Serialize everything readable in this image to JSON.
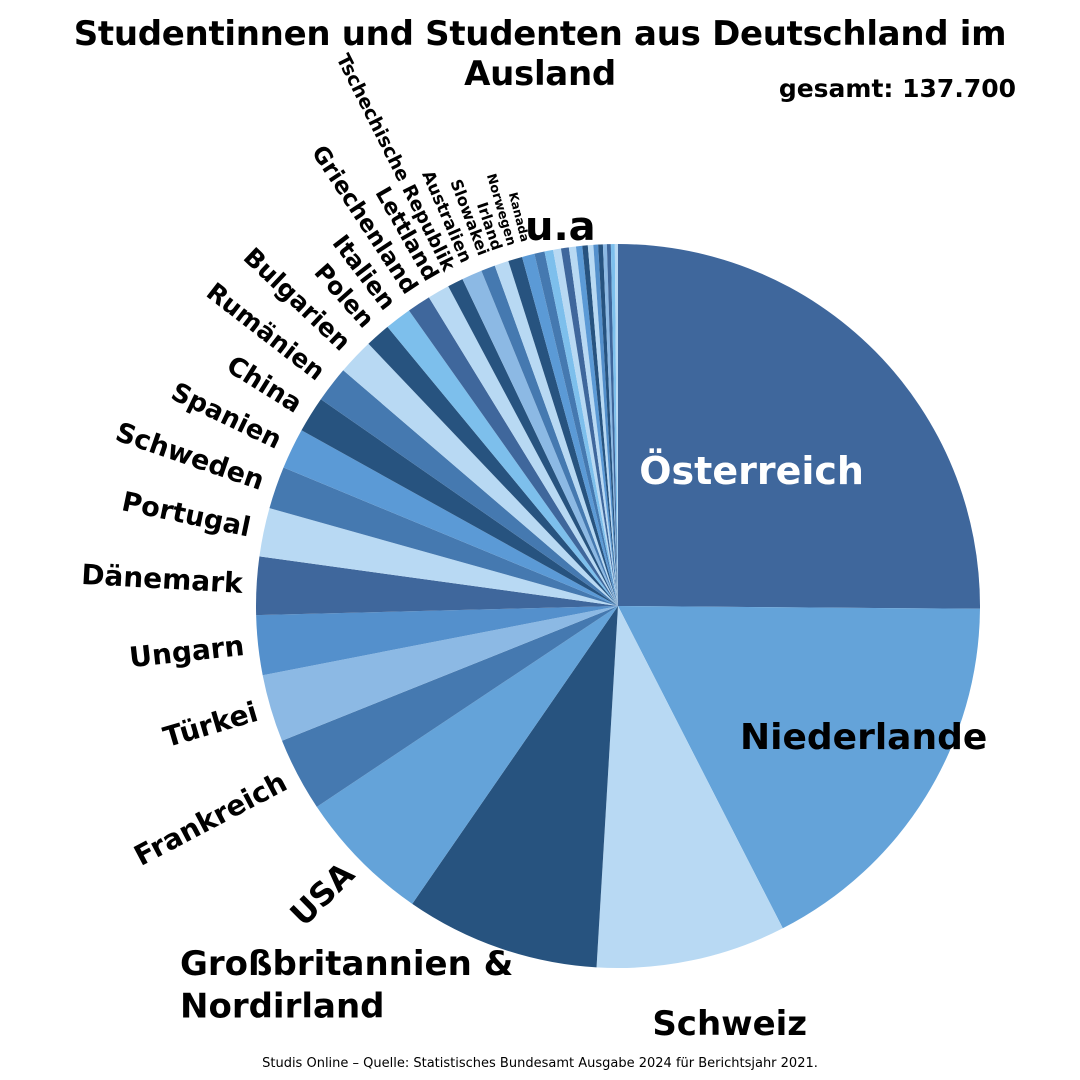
{
  "title": "Studentinnen und Studenten aus Deutschland im Ausland",
  "subtitle": "gesamt: 137.700",
  "source": "Studis Online – Quelle: Statistisches Bundesamt Ausgabe 2024 für Berichtsjahr 2021.",
  "chart_data": {
    "type": "pie",
    "title": "Studentinnen und Studenten aus Deutschland im Ausland",
    "total": 137700,
    "start_angle": "12 o'clock, clockwise",
    "slices": [
      {
        "label": "Österreich",
        "value": 35900,
        "color": "#3f679c"
      },
      {
        "label": "Niederlande",
        "value": 24800,
        "color": "#64a3d9"
      },
      {
        "label": "Schweiz",
        "value": 12100,
        "color": "#b8d9f3"
      },
      {
        "label": "Großbritannien & Nordirland",
        "value": 12400,
        "color": "#27537f"
      },
      {
        "label": "USA",
        "value": 8600,
        "color": "#64a3d9"
      },
      {
        "label": "Frankreich",
        "value": 4700,
        "color": "#4579b0"
      },
      {
        "label": "Türkei",
        "value": 4300,
        "color": "#8cb9e4"
      },
      {
        "label": "Ungarn",
        "value": 3800,
        "color": "#5490cc"
      },
      {
        "label": "Dänemark",
        "value": 3700,
        "color": "#3f679c"
      },
      {
        "label": "Portugal",
        "value": 3100,
        "color": "#b8d9f3"
      },
      {
        "label": "Schweden",
        "value": 2700,
        "color": "#4579b0"
      },
      {
        "label": "Spanien",
        "value": 2600,
        "color": "#5b9ad6"
      },
      {
        "label": "China",
        "value": 2300,
        "color": "#27537f"
      },
      {
        "label": "Rumänien",
        "value": 2300,
        "color": "#4579b0"
      },
      {
        "label": "Bulgarien",
        "value": 2300,
        "color": "#b8d9f3"
      },
      {
        "label": "Polen",
        "value": 1600,
        "color": "#27537f"
      },
      {
        "label": "Italien",
        "value": 1700,
        "color": "#7dbfec"
      },
      {
        "label": "Griechenland",
        "value": 1500,
        "color": "#3f679c"
      },
      {
        "label": "Lettland",
        "value": 1400,
        "color": "#b8d9f3"
      },
      {
        "label": "Tschechische Republik",
        "value": 1000,
        "color": "#27537f"
      },
      {
        "label": "Australien",
        "value": 1300,
        "color": "#8cb9e4"
      },
      {
        "label": "Slowakei",
        "value": 900,
        "color": "#4579b0"
      },
      {
        "label": "Irland",
        "value": 900,
        "color": "#b8d9f3"
      },
      {
        "label": "Norwegen",
        "value": 900,
        "color": "#27537f"
      },
      {
        "label": "Kanada",
        "value": 800,
        "color": "#5b9ad6"
      },
      {
        "label": "",
        "value": 650,
        "color": "#4579b0"
      },
      {
        "label": "",
        "value": 550,
        "color": "#7dbfec"
      },
      {
        "label": "",
        "value": 500,
        "color": "#b8d9f3"
      },
      {
        "label": "",
        "value": 500,
        "color": "#3f679c"
      },
      {
        "label": "",
        "value": 450,
        "color": "#b8d9f3"
      },
      {
        "label": "",
        "value": 400,
        "color": "#5b9ad6"
      },
      {
        "label": "",
        "value": 350,
        "color": "#27537f"
      },
      {
        "label": "",
        "value": 350,
        "color": "#b8d9f3"
      },
      {
        "label": "",
        "value": 300,
        "color": "#5490cc"
      },
      {
        "label": "",
        "value": 300,
        "color": "#27537f"
      },
      {
        "label": "",
        "value": 250,
        "color": "#8cb9e4"
      },
      {
        "label": "",
        "value": 250,
        "color": "#3f679c"
      },
      {
        "label": "",
        "value": 250,
        "color": "#7dbfec"
      },
      {
        "label": "",
        "value": 200,
        "color": "#b8d9f3"
      }
    ],
    "group_label": "u.a"
  }
}
